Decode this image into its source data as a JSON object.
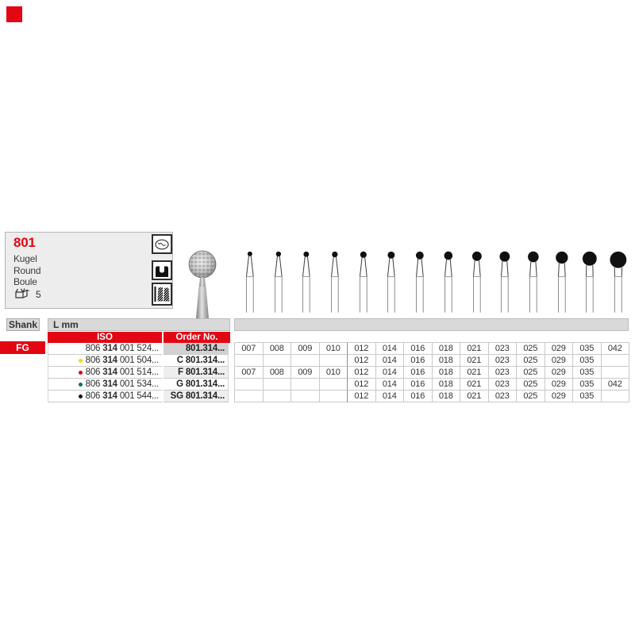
{
  "page_marker": {
    "color": "#e30613"
  },
  "info": {
    "product_number": "801",
    "shape_names": [
      "Kugel",
      "Round",
      "Boule"
    ],
    "pack_quantity": "5",
    "icons": [
      "occlusal-surface-icon",
      "cavity-preparation-icon",
      "crown-stump-icon"
    ]
  },
  "illustration_sizes": [
    7,
    8,
    9,
    10,
    12,
    14,
    16,
    18,
    21,
    23,
    25,
    29,
    35,
    42
  ],
  "table": {
    "shank_header": "Shank",
    "l_header": "L mm",
    "iso_header": "ISO",
    "order_header": "Order No.",
    "shank_value": "FG",
    "size_columns": [
      "007",
      "008",
      "009",
      "010",
      "012",
      "014",
      "016",
      "018",
      "021",
      "023",
      "025",
      "029",
      "035",
      "042"
    ],
    "rows": [
      {
        "dot_color": null,
        "iso": [
          "806",
          "314",
          "001 524..."
        ],
        "order_no": "801.314...",
        "order_shade": "dark",
        "sizes": [
          "007",
          "008",
          "009",
          "010",
          "012",
          "014",
          "016",
          "018",
          "021",
          "023",
          "025",
          "029",
          "035",
          "042"
        ]
      },
      {
        "dot_color": "#ffd500",
        "iso": [
          "806",
          "314",
          "001 504..."
        ],
        "order_no": "C 801.314...",
        "order_shade": "none",
        "sizes": [
          "012",
          "014",
          "016",
          "018",
          "021",
          "023",
          "025",
          "029",
          "035"
        ]
      },
      {
        "dot_color": "#e30613",
        "iso": [
          "806",
          "314",
          "001 514..."
        ],
        "order_no": "F 801.314...",
        "order_shade": "light",
        "sizes": [
          "007",
          "008",
          "009",
          "010",
          "012",
          "014",
          "016",
          "018",
          "021",
          "023",
          "025",
          "029",
          "035"
        ]
      },
      {
        "dot_color": "#00793a",
        "iso": [
          "806",
          "314",
          "001 534..."
        ],
        "order_no": "G 801.314...",
        "order_shade": "none",
        "sizes": [
          "012",
          "014",
          "016",
          "018",
          "021",
          "023",
          "025",
          "029",
          "035",
          "042"
        ]
      },
      {
        "dot_color": "#141414",
        "iso": [
          "806",
          "314",
          "001 544..."
        ],
        "order_no": "SG 801.314...",
        "order_shade": "light",
        "sizes": [
          "012",
          "014",
          "016",
          "018",
          "021",
          "023",
          "025",
          "029",
          "035"
        ]
      }
    ]
  }
}
